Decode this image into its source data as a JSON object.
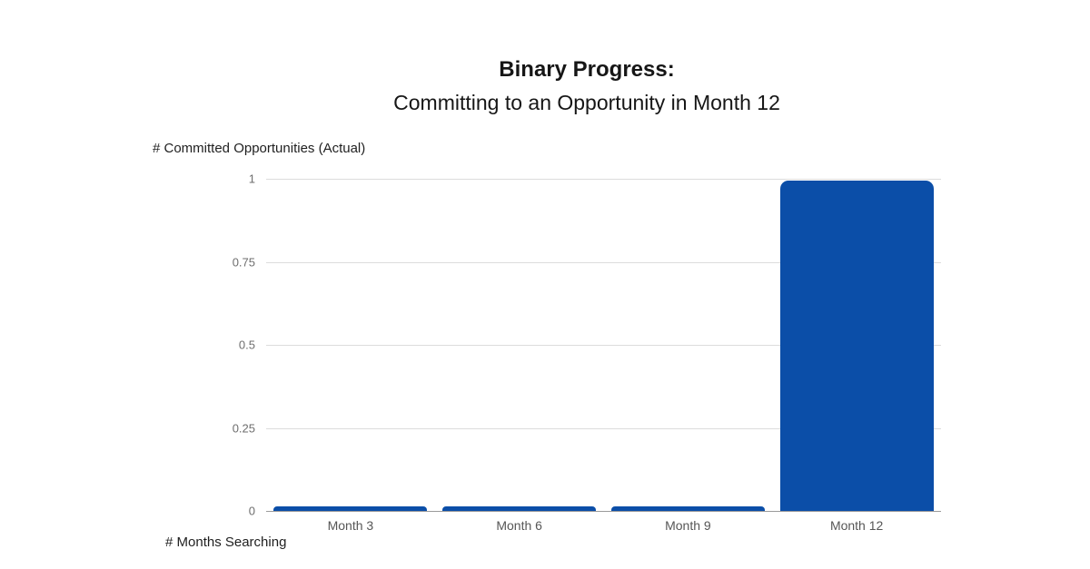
{
  "title": {
    "line1": "Binary Progress:",
    "line2": "Committing to an Opportunity in Month 12"
  },
  "y_axis_label": "# Committed Opportunities (Actual)",
  "x_axis_label": "# Months Searching",
  "colors": {
    "bar": "#0b4ea8",
    "gridline": "#dcdcdc",
    "baseline": "#9a9a9a",
    "tick_text": "#6e6e6e",
    "category_text": "#565656",
    "title_text": "#161616"
  },
  "chart_data": {
    "type": "bar",
    "title": "Binary Progress: Committing to an Opportunity in Month 12",
    "categories": [
      "Month 3",
      "Month 6",
      "Month 9",
      "Month 12"
    ],
    "values": [
      0,
      0,
      0,
      1
    ],
    "xlabel": "# Months Searching",
    "ylabel": "# Committed Opportunities (Actual)",
    "ylim": [
      0,
      1
    ],
    "yticks": [
      0,
      0.25,
      0.5,
      0.75,
      1
    ],
    "grid": true,
    "legend": false
  }
}
